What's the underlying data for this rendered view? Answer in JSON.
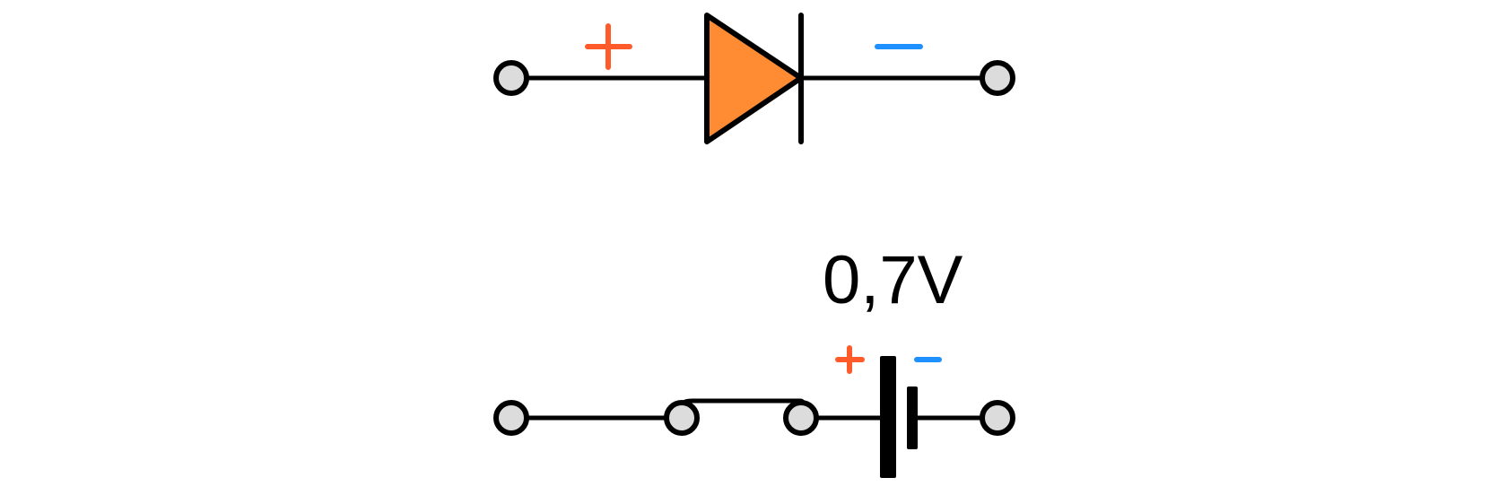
{
  "colors": {
    "background": "#ffffff",
    "line": "#000000",
    "diode_fill": "#ff8c33",
    "positive": "#ff5a2a",
    "negative": "#1e90ff",
    "terminal_fill": "#dcdcdc"
  },
  "diode_circuit": {
    "anode_sign": "+",
    "cathode_sign": "−"
  },
  "equivalent_circuit": {
    "voltage_label": "0,7V",
    "battery_positive_sign": "+",
    "battery_negative_sign": "−",
    "switch_state": "closed"
  },
  "icons": [
    "terminal-icon",
    "diode-icon",
    "switch-icon",
    "battery-icon"
  ]
}
